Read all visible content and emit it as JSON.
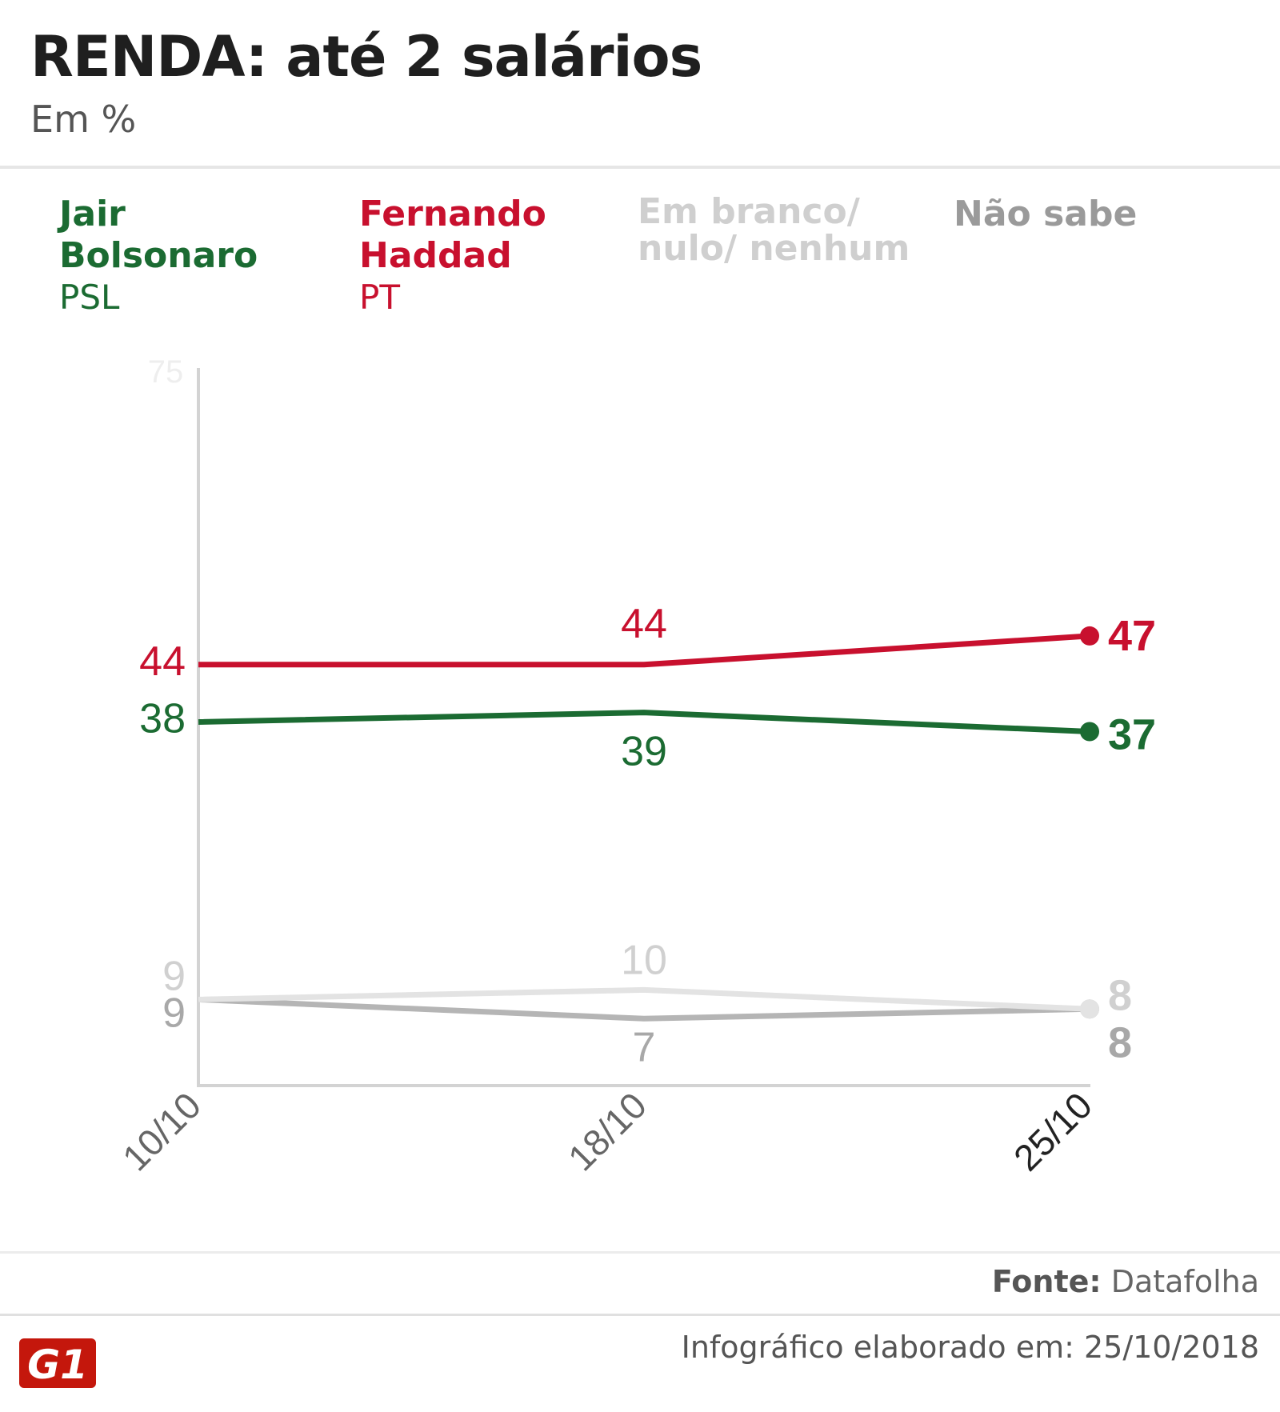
{
  "chart_data": {
    "type": "line",
    "title": "RENDA: até 2 salários",
    "subtitle": "Em %",
    "ylim": [
      0,
      75
    ],
    "y_top_tick": "75",
    "categories": [
      "10/10",
      "18/10",
      "25/10"
    ],
    "series": [
      {
        "key": "bolsonaro",
        "name": "Jair Bolsonaro",
        "party": "PSL",
        "color": "#1b6b32",
        "values": [
          38,
          39,
          37
        ]
      },
      {
        "key": "haddad",
        "name": "Fernando Haddad",
        "party": "PT",
        "color": "#c8102e",
        "values": [
          44,
          44,
          47
        ]
      },
      {
        "key": "branco",
        "name": "Em branco/ nulo/ nenhum",
        "party": "",
        "color": "#e3e3e3",
        "label_color": "#d0d0d0",
        "values": [
          9,
          10,
          8
        ]
      },
      {
        "key": "naosabe",
        "name": "Não sabe",
        "party": "",
        "color": "#b5b5b5",
        "label_color": "#a8a8a8",
        "values": [
          9,
          7,
          8
        ]
      }
    ]
  },
  "legend": {
    "bolsonaro_line1": "Jair",
    "bolsonaro_line2": "Bolsonaro",
    "bolsonaro_party": "PSL",
    "haddad_line1": "Fernando",
    "haddad_line2": "Haddad",
    "haddad_party": "PT",
    "branco_line1": "Em branco/",
    "branco_line2": "nulo/ nenhum",
    "naosabe": "Não sabe"
  },
  "footer": {
    "source_label": "Fonte:",
    "source_value": "Datafolha",
    "credit": "Infográfico elaborado em: 25/10/2018",
    "logo_text": "G1"
  }
}
